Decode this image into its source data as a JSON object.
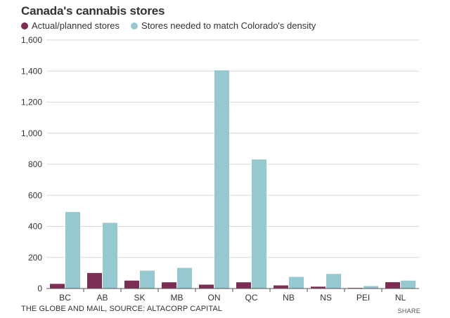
{
  "chart_data": {
    "type": "bar",
    "title": "Canada's cannabis stores",
    "categories": [
      "BC",
      "AB",
      "SK",
      "MB",
      "ON",
      "QC",
      "NB",
      "NS",
      "PEI",
      "NL"
    ],
    "series": [
      {
        "name": "Actual/planned stores",
        "color": "#7b2d54",
        "values": [
          30,
          100,
          51,
          40,
          25,
          40,
          20,
          12,
          4,
          41
        ]
      },
      {
        "name": "Stores needed to match Colorado's density",
        "color": "#96c8d0",
        "values": [
          493,
          423,
          115,
          133,
          1405,
          831,
          75,
          94,
          16,
          51
        ]
      }
    ],
    "ylim": [
      0,
      1600
    ],
    "yticks": [
      0,
      200,
      400,
      600,
      800,
      1000,
      1200,
      1400,
      1600
    ],
    "ytick_labels": [
      "0",
      "200",
      "400",
      "600",
      "800",
      "1,000",
      "1,200",
      "1,400",
      "1,600"
    ],
    "xlabel": "",
    "ylabel": "",
    "grid": true,
    "legend_position": "top-left"
  },
  "footer": {
    "source": "THE GLOBE AND MAIL, SOURCE: ALTACORP CAPITAL",
    "share_label": "SHARE"
  }
}
